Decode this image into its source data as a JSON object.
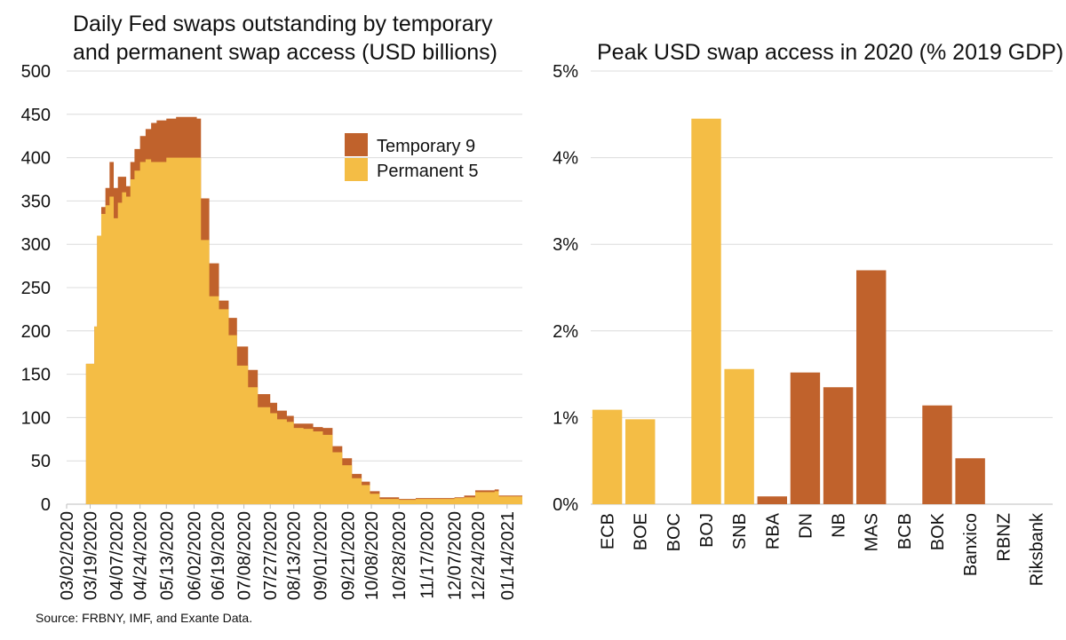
{
  "source": "Source: FRBNY, IMF, and Exante Data.",
  "chart_data": [
    {
      "type": "area",
      "stacked": true,
      "title": [
        "Daily Fed swaps outstanding by temporary",
        "and permanent swap access (USD billions)"
      ],
      "ylim": [
        0,
        500
      ],
      "yticks": [
        "0",
        "50",
        "100",
        "150",
        "200",
        "250",
        "300",
        "350",
        "400",
        "450",
        "500"
      ],
      "xticks": [
        "03/02/2020",
        "03/19/2020",
        "04/07/2020",
        "04/24/2020",
        "05/13/2020",
        "06/02/2020",
        "06/19/2020",
        "07/08/2020",
        "07/27/2020",
        "08/13/2020",
        "09/01/2020",
        "09/21/2020",
        "10/08/2020",
        "10/28/2020",
        "11/17/2020",
        "12/07/2020",
        "12/24/2020",
        "01/14/2021"
      ],
      "grid": true,
      "legend_position": "top-right",
      "series": [
        {
          "name": "Temporary 9",
          "color": "#c0622c"
        },
        {
          "name": "Permanent 5",
          "color": "#f4bd45"
        }
      ],
      "points": [
        {
          "x": "03/02/2020",
          "permanent": 0,
          "temporary": 0
        },
        {
          "x": "03/15/2020",
          "permanent": 0,
          "temporary": 0
        },
        {
          "x": "03/16/2020",
          "permanent": 162,
          "temporary": 0
        },
        {
          "x": "03/22/2020",
          "permanent": 205,
          "temporary": 0
        },
        {
          "x": "03/24/2020",
          "permanent": 310,
          "temporary": 0
        },
        {
          "x": "03/27/2020",
          "permanent": 335,
          "temporary": 8
        },
        {
          "x": "03/30/2020",
          "permanent": 345,
          "temporary": 20
        },
        {
          "x": "04/02/2020",
          "permanent": 355,
          "temporary": 40
        },
        {
          "x": "04/05/2020",
          "permanent": 330,
          "temporary": 35
        },
        {
          "x": "04/08/2020",
          "permanent": 348,
          "temporary": 30
        },
        {
          "x": "04/11/2020",
          "permanent": 360,
          "temporary": 18
        },
        {
          "x": "04/14/2020",
          "permanent": 355,
          "temporary": 12
        },
        {
          "x": "04/17/2020",
          "permanent": 375,
          "temporary": 20
        },
        {
          "x": "04/20/2020",
          "permanent": 385,
          "temporary": 25
        },
        {
          "x": "04/24/2020",
          "permanent": 395,
          "temporary": 30
        },
        {
          "x": "04/28/2020",
          "permanent": 398,
          "temporary": 35
        },
        {
          "x": "05/02/2020",
          "permanent": 395,
          "temporary": 45
        },
        {
          "x": "05/06/2020",
          "permanent": 395,
          "temporary": 48
        },
        {
          "x": "05/13/2020",
          "permanent": 400,
          "temporary": 45
        },
        {
          "x": "05/20/2020",
          "permanent": 400,
          "temporary": 47
        },
        {
          "x": "05/27/2020",
          "permanent": 400,
          "temporary": 47
        },
        {
          "x": "06/04/2020",
          "permanent": 400,
          "temporary": 45
        },
        {
          "x": "06/07/2020",
          "permanent": 305,
          "temporary": 48
        },
        {
          "x": "06/13/2020",
          "permanent": 240,
          "temporary": 38
        },
        {
          "x": "06/20/2020",
          "permanent": 225,
          "temporary": 10
        },
        {
          "x": "06/27/2020",
          "permanent": 195,
          "temporary": 20
        },
        {
          "x": "07/03/2020",
          "permanent": 160,
          "temporary": 22
        },
        {
          "x": "07/11/2020",
          "permanent": 135,
          "temporary": 20
        },
        {
          "x": "07/18/2020",
          "permanent": 112,
          "temporary": 15
        },
        {
          "x": "07/27/2020",
          "permanent": 105,
          "temporary": 12
        },
        {
          "x": "08/01/2020",
          "permanent": 98,
          "temporary": 10
        },
        {
          "x": "08/08/2020",
          "permanent": 95,
          "temporary": 7
        },
        {
          "x": "08/13/2020",
          "permanent": 88,
          "temporary": 5
        },
        {
          "x": "08/20/2020",
          "permanent": 87,
          "temporary": 6
        },
        {
          "x": "08/27/2020",
          "permanent": 84,
          "temporary": 5
        },
        {
          "x": "09/03/2020",
          "permanent": 80,
          "temporary": 8
        },
        {
          "x": "09/10/2020",
          "permanent": 60,
          "temporary": 7
        },
        {
          "x": "09/17/2020",
          "permanent": 45,
          "temporary": 8
        },
        {
          "x": "09/24/2020",
          "permanent": 30,
          "temporary": 5
        },
        {
          "x": "10/01/2020",
          "permanent": 22,
          "temporary": 4
        },
        {
          "x": "10/07/2020",
          "permanent": 12,
          "temporary": 3
        },
        {
          "x": "10/14/2020",
          "permanent": 6,
          "temporary": 2
        },
        {
          "x": "10/28/2020",
          "permanent": 5,
          "temporary": 1
        },
        {
          "x": "11/09/2020",
          "permanent": 6,
          "temporary": 1
        },
        {
          "x": "11/23/2020",
          "permanent": 6,
          "temporary": 1
        },
        {
          "x": "12/07/2020",
          "permanent": 7,
          "temporary": 1
        },
        {
          "x": "12/14/2020",
          "permanent": 8,
          "temporary": 2
        },
        {
          "x": "12/22/2020",
          "permanent": 14,
          "temporary": 2
        },
        {
          "x": "01/05/2021",
          "permanent": 15,
          "temporary": 2
        },
        {
          "x": "01/08/2021",
          "permanent": 9,
          "temporary": 1
        },
        {
          "x": "01/21/2021",
          "permanent": 9,
          "temporary": 1
        }
      ]
    },
    {
      "type": "bar",
      "title": [
        "Peak USD swap access in 2020 (% 2019 GDP)"
      ],
      "ylim": [
        0,
        5
      ],
      "yticks": [
        "0%",
        "1%",
        "2%",
        "3%",
        "4%",
        "5%"
      ],
      "grid": true,
      "categories": [
        "ECB",
        "BOE",
        "BOC",
        "BOJ",
        "SNB",
        "RBA",
        "DN",
        "NB",
        "MAS",
        "BCB",
        "BOK",
        "Banxico",
        "RBNZ",
        "Riksbank"
      ],
      "values": [
        1.09,
        0.98,
        0,
        4.45,
        1.56,
        0.09,
        1.52,
        1.35,
        2.7,
        0,
        1.14,
        0.53,
        0,
        0
      ],
      "colors": [
        "#f4bd45",
        "#f4bd45",
        "#f4bd45",
        "#f4bd45",
        "#f4bd45",
        "#c0622c",
        "#c0622c",
        "#c0622c",
        "#c0622c",
        "#c0622c",
        "#c0622c",
        "#c0622c",
        "#c0622c",
        "#c0622c"
      ]
    }
  ]
}
